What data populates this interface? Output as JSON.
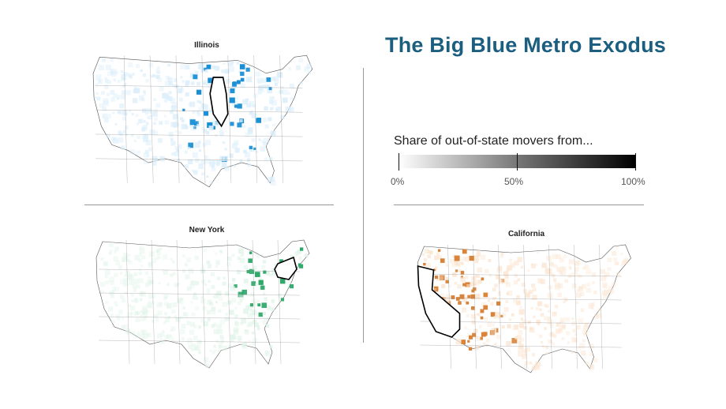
{
  "title": "The Big Blue Metro Exodus",
  "legend": {
    "title": "Share of out-of-state movers from...",
    "ticks": [
      "0%",
      "50%",
      "100%"
    ],
    "scale": [
      0,
      50,
      100
    ]
  },
  "maps": [
    {
      "label": "Illinois",
      "color": "#1a8fd6",
      "light": "#dbeefa"
    },
    {
      "label": "New York",
      "color": "#2fa86a",
      "light": "#e2f4ea"
    },
    {
      "label": "California",
      "color": "#d9843a",
      "light": "#fbe6d2"
    }
  ]
}
